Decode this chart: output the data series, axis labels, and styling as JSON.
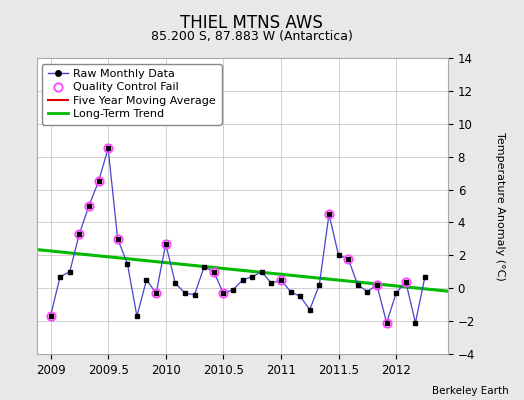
{
  "title": "THIEL MTNS AWS",
  "subtitle": "85.200 S, 87.883 W (Antarctica)",
  "ylabel": "Temperature Anomaly (°C)",
  "credit": "Berkeley Earth",
  "xlim": [
    2008.88,
    2012.45
  ],
  "ylim": [
    -4,
    14
  ],
  "yticks": [
    -4,
    -2,
    0,
    2,
    4,
    6,
    8,
    10,
    12,
    14
  ],
  "xticks": [
    2009,
    2009.5,
    2010,
    2010.5,
    2011,
    2011.5,
    2012
  ],
  "xtick_labels": [
    "2009",
    "2009.5",
    "2010",
    "2010.5",
    "2011",
    "2011.5",
    "2012"
  ],
  "raw_x": [
    2009.0,
    2009.083,
    2009.167,
    2009.25,
    2009.333,
    2009.417,
    2009.5,
    2009.583,
    2009.667,
    2009.75,
    2009.833,
    2009.917,
    2010.0,
    2010.083,
    2010.167,
    2010.25,
    2010.333,
    2010.417,
    2010.5,
    2010.583,
    2010.667,
    2010.75,
    2010.833,
    2010.917,
    2011.0,
    2011.083,
    2011.167,
    2011.25,
    2011.333,
    2011.417,
    2011.5,
    2011.583,
    2011.667,
    2011.75,
    2011.833,
    2011.917,
    2012.0,
    2012.083,
    2012.167,
    2012.25
  ],
  "raw_y": [
    -1.7,
    0.7,
    1.0,
    3.3,
    5.0,
    6.5,
    8.5,
    3.0,
    1.5,
    -1.7,
    0.5,
    -0.3,
    2.7,
    0.3,
    -0.3,
    -0.4,
    1.3,
    1.0,
    -0.3,
    -0.1,
    0.5,
    0.7,
    1.0,
    0.3,
    0.5,
    -0.2,
    -0.5,
    -1.3,
    0.2,
    4.5,
    2.0,
    1.8,
    0.2,
    -0.2,
    0.2,
    -2.1,
    -0.3,
    0.4,
    -2.1,
    0.7
  ],
  "qc_fail_x": [
    2009.0,
    2009.25,
    2009.333,
    2009.417,
    2009.5,
    2009.583,
    2009.917,
    2010.0,
    2010.417,
    2010.5,
    2011.0,
    2011.417,
    2011.583,
    2011.833,
    2011.917,
    2012.083
  ],
  "qc_fail_y": [
    -1.7,
    3.3,
    5.0,
    6.5,
    8.5,
    3.0,
    -0.3,
    2.7,
    1.0,
    -0.3,
    0.5,
    4.5,
    1.8,
    0.2,
    -2.1,
    0.4
  ],
  "trend_x": [
    2008.88,
    2012.45
  ],
  "trend_y": [
    2.35,
    -0.18
  ],
  "bg_color": "#e8e8e8",
  "plot_bg_color": "#ffffff",
  "raw_line_color": "#4444cc",
  "raw_marker_color": "#000000",
  "qc_color": "#ff44ff",
  "moving_avg_color": "#dd0000",
  "trend_color": "#00bb00",
  "title_fontsize": 12,
  "subtitle_fontsize": 9,
  "tick_fontsize": 8.5,
  "legend_fontsize": 8,
  "ylabel_fontsize": 8
}
